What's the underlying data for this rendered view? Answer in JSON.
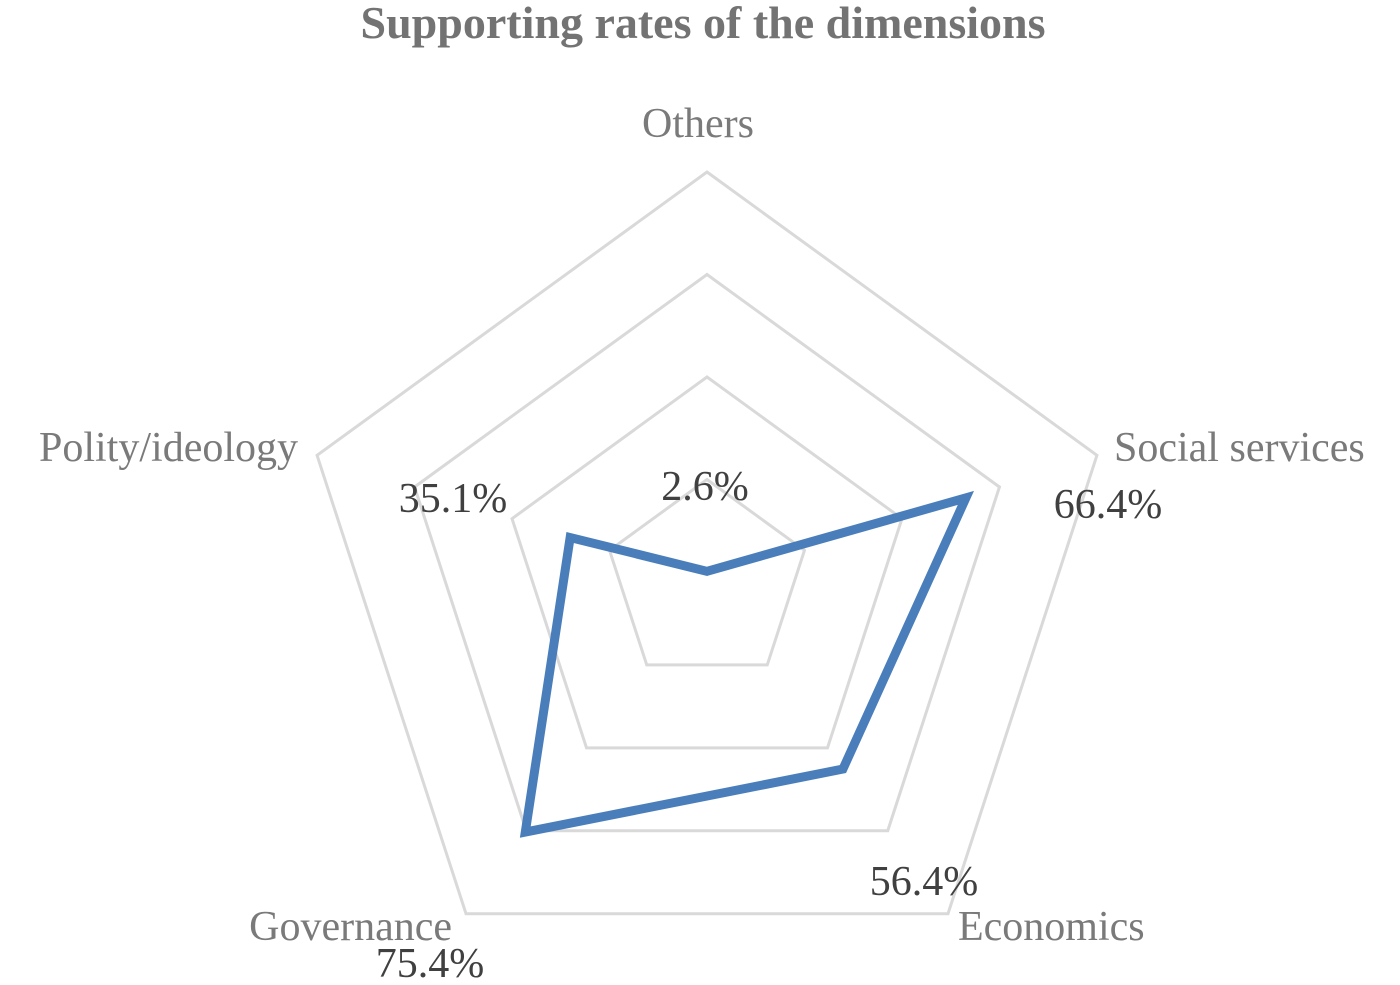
{
  "chart_data": {
    "type": "radar",
    "title": "Supporting rates of the dimensions",
    "categories": [
      "Others",
      "Social services",
      "Economics",
      "Governance",
      "Polity/ideology"
    ],
    "series": [
      {
        "values": [
          2.6,
          66.4,
          56.4,
          75.4,
          35.1
        ]
      }
    ],
    "data_labels": [
      "2.6%",
      "66.4%",
      "56.4%",
      "75.4%",
      "35.1%"
    ],
    "rlim": [
      0,
      100
    ],
    "grid_levels": [
      25,
      50,
      75,
      100
    ],
    "grid": true,
    "legend": "none",
    "colors": {
      "series": "#4a7ebb",
      "grid": "#d9d9d9",
      "title": "#737373",
      "axis_label": "#7a7a7a",
      "data_label": "#404040"
    }
  }
}
